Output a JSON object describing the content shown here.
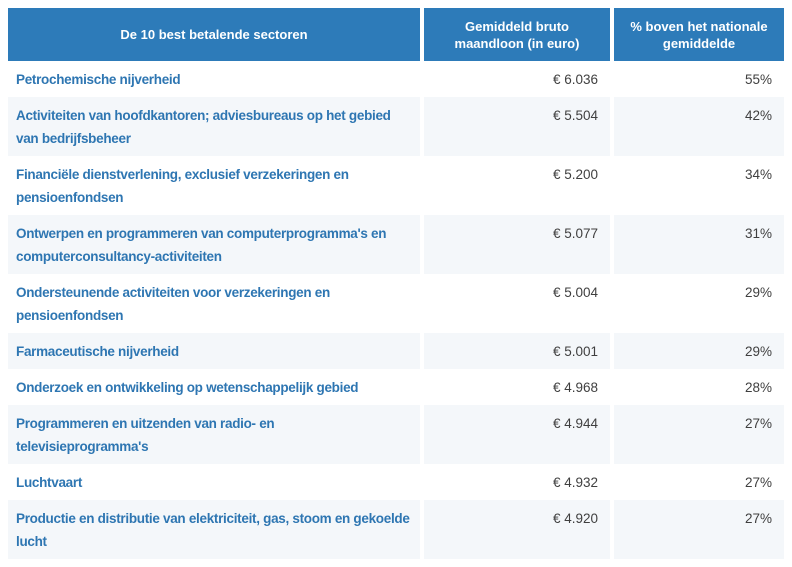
{
  "colors": {
    "header_bg": "#2d7bb9",
    "header_text": "#ffffff",
    "row_alt_bg": "#f4f7fa",
    "sector_color": "#2e76b2",
    "value_color": "#3f3f3f"
  },
  "table": {
    "columns": [
      {
        "label": "De 10 best betalende sectoren"
      },
      {
        "label": "Gemiddeld bruto maandloon (in euro)"
      },
      {
        "label": "% boven het nationale gemiddelde"
      }
    ],
    "rows": [
      {
        "sector": "Petrochemische nijverheid",
        "wage": "€ 6.036",
        "pct": "55%"
      },
      {
        "sector": "Activiteiten van hoofdkantoren; adviesbureaus op het gebied van bedrijfsbeheer",
        "wage": "€ 5.504",
        "pct": "42%"
      },
      {
        "sector": "Financiële dienstverlening, exclusief verzekeringen en pensioenfondsen",
        "wage": "€ 5.200",
        "pct": "34%"
      },
      {
        "sector": "Ontwerpen en programmeren van computerprogramma's en computerconsultancy-activiteiten",
        "wage": "€ 5.077",
        "pct": "31%"
      },
      {
        "sector": "Ondersteunende activiteiten voor verzekeringen en pensioenfondsen",
        "wage": "€ 5.004",
        "pct": "29%"
      },
      {
        "sector": "Farmaceutische nijverheid",
        "wage": "€ 5.001",
        "pct": "29%"
      },
      {
        "sector": "Onderzoek en ontwikkeling op wetenschappelijk gebied",
        "wage": "€ 4.968",
        "pct": "28%"
      },
      {
        "sector": "Programmeren en uitzenden van radio- en televisieprogramma's",
        "wage": "€ 4.944",
        "pct": "27%"
      },
      {
        "sector": "Luchtvaart",
        "wage": "€ 4.932",
        "pct": "27%"
      },
      {
        "sector": "Productie en distributie van elektriciteit, gas, stoom en gekoelde lucht",
        "wage": "€ 4.920",
        "pct": "27%"
      }
    ]
  },
  "chart_data": {
    "type": "table",
    "title": "De 10 best betalende sectoren",
    "columns": [
      "De 10 best betalende sectoren",
      "Gemiddeld bruto maandloon (in euro)",
      "% boven het nationale gemiddelde"
    ],
    "rows": [
      [
        "Petrochemische nijverheid",
        6036,
        55
      ],
      [
        "Activiteiten van hoofdkantoren; adviesbureaus op het gebied van bedrijfsbeheer",
        5504,
        42
      ],
      [
        "Financiële dienstverlening, exclusief verzekeringen en pensioenfondsen",
        5200,
        34
      ],
      [
        "Ontwerpen en programmeren van computerprogramma's en computerconsultancy-activiteiten",
        5077,
        31
      ],
      [
        "Ondersteunende activiteiten voor verzekeringen en pensioenfondsen",
        5004,
        29
      ],
      [
        "Farmaceutische nijverheid",
        5001,
        29
      ],
      [
        "Onderzoek en ontwikkeling op wetenschappelijk gebied",
        4968,
        28
      ],
      [
        "Programmeren en uitzenden van radio- en televisieprogramma's",
        4944,
        27
      ],
      [
        "Luchtvaart",
        4932,
        27
      ],
      [
        "Productie en distributie van elektriciteit, gas, stoom en gekoelde lucht",
        4920,
        27
      ]
    ],
    "layout_hints": {
      "row_striping": true,
      "wage_alignment": "right",
      "percent_alignment": "right",
      "header_alignment": "center"
    }
  }
}
